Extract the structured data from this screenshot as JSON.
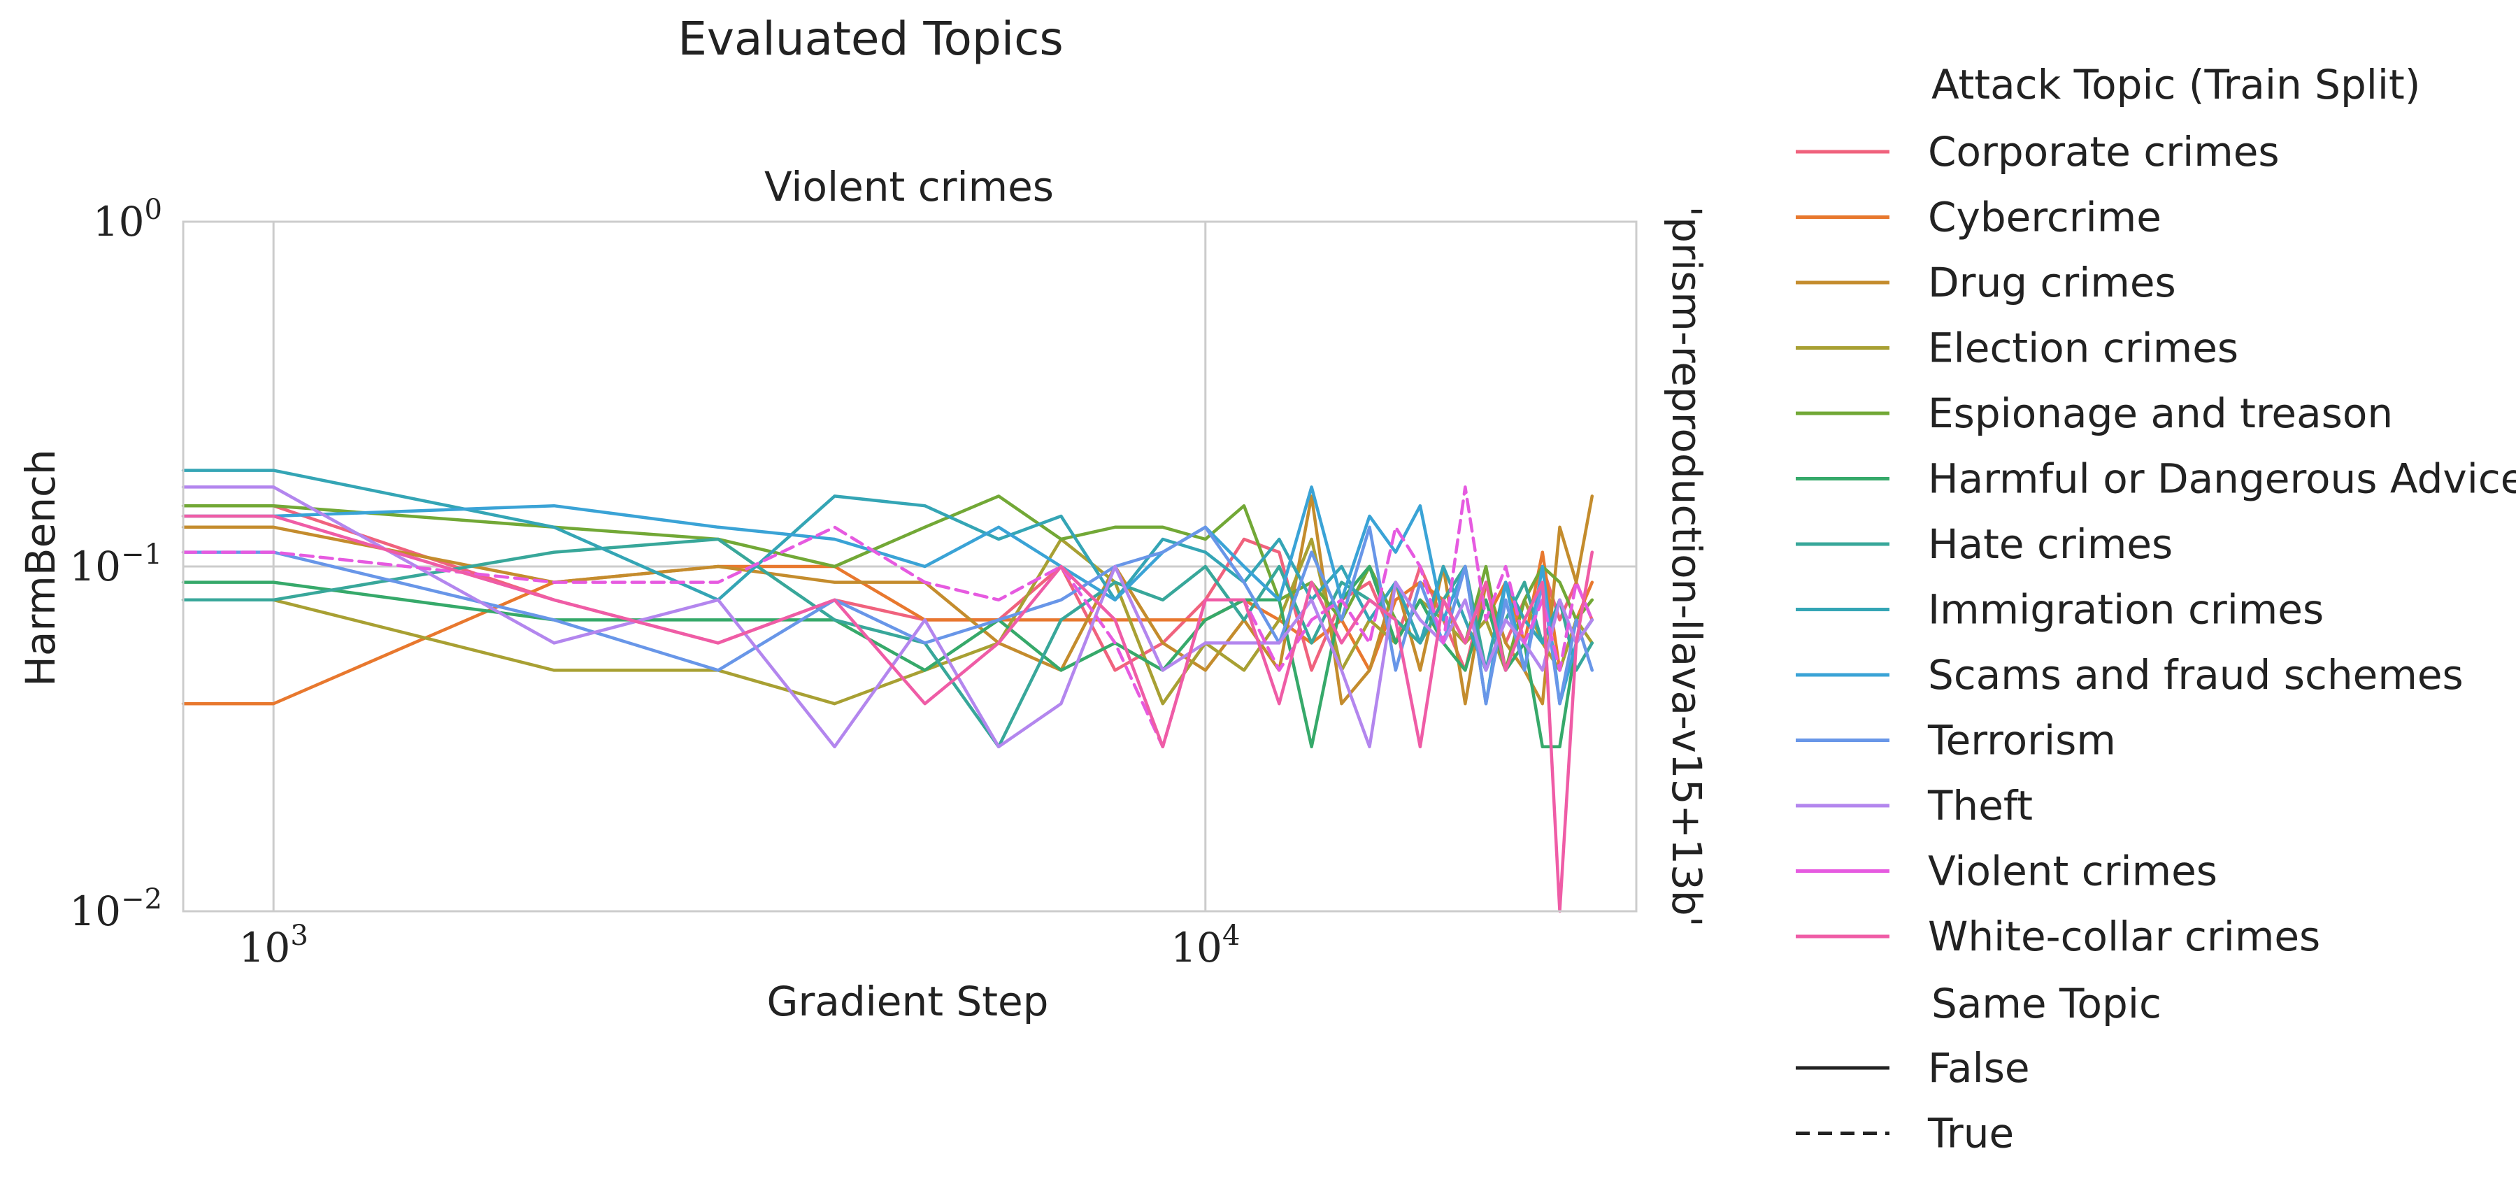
{
  "figure": {
    "suptitle": "Evaluated Topics",
    "panel_title": "Violent crimes",
    "row_label": "'prism-reproduction-llava-v15+13b'"
  },
  "chart_data": {
    "type": "line",
    "title": "Violent crimes",
    "xlabel": "Gradient Step",
    "ylabel": "HarmBench",
    "xscale": "log",
    "yscale": "log",
    "xlim": [
      800,
      29000
    ],
    "ylim": [
      0.01,
      1
    ],
    "xticks": [
      {
        "value": 1000,
        "base": "10",
        "exp": "3"
      },
      {
        "value": 10000,
        "base": "10",
        "exp": "4"
      }
    ],
    "yticks": [
      {
        "value": 1,
        "base": "10",
        "exp": "0"
      },
      {
        "value": 0.1,
        "base": "10",
        "exp": "−1"
      },
      {
        "value": 0.01,
        "base": "10",
        "exp": "−2"
      }
    ],
    "grid": true,
    "legend_position": "right, outside the axes",
    "legend": {
      "hue_title": "Attack Topic (Train Split)",
      "style_title": "Same Topic",
      "style_items": [
        {
          "label": "False",
          "dash": "solid"
        },
        {
          "label": "True",
          "dash": "dashed"
        }
      ]
    },
    "series": [
      {
        "name": "Corporate crimes",
        "color": "#f0627d",
        "same_topic": false,
        "x": [
          1000,
          2000,
          3000,
          4000,
          5000,
          6000,
          7000,
          8000,
          9000,
          10000,
          11000,
          12000,
          13000,
          14000,
          15000,
          16000,
          17000,
          18000,
          19000,
          20000,
          21000,
          22000,
          23000,
          24000,
          25000,
          26000
        ],
        "y": [
          0.15,
          0.08,
          0.06,
          0.08,
          0.07,
          0.07,
          0.1,
          0.05,
          0.06,
          0.08,
          0.12,
          0.11,
          0.05,
          0.08,
          0.09,
          0.06,
          0.1,
          0.07,
          0.05,
          0.09,
          0.06,
          0.08,
          0.1,
          0.07,
          0.09,
          0.07
        ]
      },
      {
        "name": "Cybercrime",
        "color": "#e8782e",
        "same_topic": false,
        "x": [
          800,
          1000,
          2000,
          3000,
          4000,
          5000,
          6000,
          7000,
          8000,
          9000,
          10000,
          11000,
          12000,
          13000,
          14000,
          15000,
          16000,
          17000,
          18000,
          19000,
          20000,
          21000,
          22000,
          23000,
          24000,
          25000,
          26000
        ],
        "y": [
          0.04,
          0.04,
          0.09,
          0.1,
          0.1,
          0.07,
          0.07,
          0.07,
          0.07,
          0.07,
          0.07,
          0.08,
          0.07,
          0.06,
          0.07,
          0.05,
          0.08,
          0.09,
          0.08,
          0.06,
          0.07,
          0.09,
          0.06,
          0.11,
          0.05,
          0.07,
          0.09
        ]
      },
      {
        "name": "Drug crimes",
        "color": "#c48c2d",
        "same_topic": false,
        "x": [
          800,
          1000,
          2000,
          3000,
          4000,
          5000,
          6000,
          7000,
          8000,
          9000,
          10000,
          11000,
          12000,
          13000,
          14000,
          15000,
          16000,
          17000,
          18000,
          19000,
          20000,
          21000,
          22000,
          23000,
          24000,
          25000,
          26000
        ],
        "y": [
          0.13,
          0.13,
          0.09,
          0.1,
          0.09,
          0.09,
          0.06,
          0.05,
          0.1,
          0.06,
          0.05,
          0.07,
          0.05,
          0.16,
          0.04,
          0.05,
          0.09,
          0.05,
          0.1,
          0.04,
          0.09,
          0.06,
          0.05,
          0.04,
          0.13,
          0.09,
          0.16
        ]
      },
      {
        "name": "Election crimes",
        "color": "#a8a033",
        "same_topic": false,
        "x": [
          800,
          1000,
          2000,
          3000,
          4000,
          5000,
          6000,
          7000,
          8000,
          9000,
          10000,
          11000,
          12000,
          13000,
          14000,
          15000,
          16000,
          17000,
          18000,
          19000,
          20000,
          21000,
          22000,
          23000,
          24000,
          25000,
          26000
        ],
        "y": [
          0.08,
          0.08,
          0.05,
          0.05,
          0.04,
          0.05,
          0.06,
          0.12,
          0.09,
          0.04,
          0.06,
          0.05,
          0.07,
          0.12,
          0.05,
          0.07,
          0.06,
          0.08,
          0.07,
          0.06,
          0.07,
          0.05,
          0.08,
          0.06,
          0.05,
          0.07,
          0.06
        ]
      },
      {
        "name": "Espionage and treason",
        "color": "#72a836",
        "same_topic": false,
        "x": [
          800,
          1000,
          2000,
          3000,
          4000,
          5000,
          6000,
          7000,
          8000,
          9000,
          10000,
          11000,
          12000,
          13000,
          14000,
          15000,
          16000,
          17000,
          18000,
          19000,
          20000,
          21000,
          22000,
          23000,
          24000,
          25000,
          26000
        ],
        "y": [
          0.15,
          0.15,
          0.13,
          0.12,
          0.1,
          0.13,
          0.16,
          0.12,
          0.13,
          0.13,
          0.12,
          0.15,
          0.08,
          0.09,
          0.07,
          0.1,
          0.07,
          0.06,
          0.08,
          0.06,
          0.1,
          0.05,
          0.08,
          0.1,
          0.09,
          0.07,
          0.08
        ]
      },
      {
        "name": "Harmful or Dangerous Advice",
        "color": "#36a96a",
        "same_topic": false,
        "x": [
          800,
          1000,
          2000,
          3000,
          4000,
          5000,
          6000,
          7000,
          8000,
          9000,
          10000,
          11000,
          12000,
          13000,
          14000,
          15000,
          16000,
          17000,
          18000,
          19000,
          20000,
          21000,
          22000,
          23000,
          24000,
          25000,
          26000
        ],
        "y": [
          0.09,
          0.09,
          0.07,
          0.07,
          0.07,
          0.05,
          0.07,
          0.05,
          0.06,
          0.05,
          0.07,
          0.08,
          0.08,
          0.03,
          0.08,
          0.1,
          0.06,
          0.08,
          0.06,
          0.05,
          0.08,
          0.05,
          0.06,
          0.03,
          0.03,
          0.06,
          0.07
        ]
      },
      {
        "name": "Hate crimes",
        "color": "#38a79a",
        "same_topic": false,
        "x": [
          800,
          1000,
          2000,
          3000,
          4000,
          5000,
          6000,
          7000,
          8000,
          9000,
          10000,
          11000,
          12000,
          13000,
          14000,
          15000,
          16000,
          17000,
          18000,
          19000,
          20000,
          21000,
          22000,
          23000,
          24000,
          25000,
          26000
        ],
        "y": [
          0.08,
          0.08,
          0.11,
          0.12,
          0.07,
          0.06,
          0.03,
          0.07,
          0.09,
          0.08,
          0.1,
          0.07,
          0.1,
          0.06,
          0.09,
          0.08,
          0.07,
          0.06,
          0.08,
          0.1,
          0.05,
          0.07,
          0.09,
          0.06,
          0.08,
          0.05,
          0.06
        ]
      },
      {
        "name": "Immigration crimes",
        "color": "#34a5b5",
        "same_topic": false,
        "x": [
          800,
          1000,
          2000,
          3000,
          4000,
          5000,
          6000,
          7000,
          8000,
          9000,
          10000,
          11000,
          12000,
          13000,
          14000,
          15000,
          16000,
          17000,
          18000,
          19000,
          20000,
          21000,
          22000,
          23000,
          24000,
          25000,
          26000
        ],
        "y": [
          0.19,
          0.19,
          0.13,
          0.08,
          0.16,
          0.15,
          0.12,
          0.14,
          0.08,
          0.12,
          0.11,
          0.09,
          0.12,
          0.08,
          0.1,
          0.07,
          0.09,
          0.06,
          0.1,
          0.07,
          0.05,
          0.09,
          0.07,
          0.06,
          0.08,
          0.06,
          0.07
        ]
      },
      {
        "name": "Scams and fraud schemes",
        "color": "#3aa3d6",
        "same_topic": false,
        "x": [
          800,
          1000,
          2000,
          3000,
          4000,
          5000,
          6000,
          7000,
          8000,
          9000,
          10000,
          11000,
          12000,
          13000,
          14000,
          15000,
          16000,
          17000,
          18000,
          19000,
          20000,
          21000,
          22000,
          23000,
          24000,
          25000,
          26000
        ],
        "y": [
          0.14,
          0.14,
          0.15,
          0.13,
          0.12,
          0.1,
          0.13,
          0.1,
          0.08,
          0.11,
          0.13,
          0.1,
          0.08,
          0.17,
          0.08,
          0.14,
          0.11,
          0.15,
          0.07,
          0.1,
          0.04,
          0.09,
          0.05,
          0.1,
          0.04,
          0.06,
          0.07
        ]
      },
      {
        "name": "Terrorism",
        "color": "#6896e8",
        "same_topic": false,
        "x": [
          800,
          1000,
          2000,
          3000,
          4000,
          5000,
          6000,
          7000,
          8000,
          9000,
          10000,
          11000,
          12000,
          13000,
          14000,
          15000,
          16000,
          17000,
          18000,
          19000,
          20000,
          21000,
          22000,
          23000,
          24000,
          25000,
          26000
        ],
        "y": [
          0.11,
          0.11,
          0.07,
          0.05,
          0.08,
          0.06,
          0.07,
          0.08,
          0.1,
          0.11,
          0.13,
          0.09,
          0.06,
          0.11,
          0.07,
          0.13,
          0.05,
          0.09,
          0.06,
          0.1,
          0.04,
          0.08,
          0.05,
          0.09,
          0.04,
          0.07,
          0.05
        ]
      },
      {
        "name": "Theft",
        "color": "#b386ee",
        "same_topic": false,
        "x": [
          800,
          1000,
          2000,
          3000,
          4000,
          5000,
          6000,
          7000,
          8000,
          9000,
          10000,
          11000,
          12000,
          13000,
          14000,
          15000,
          16000,
          17000,
          18000,
          19000,
          20000,
          21000,
          22000,
          23000,
          24000,
          25000,
          26000
        ],
        "y": [
          0.17,
          0.17,
          0.06,
          0.08,
          0.03,
          0.07,
          0.03,
          0.04,
          0.1,
          0.05,
          0.06,
          0.06,
          0.06,
          0.08,
          0.05,
          0.03,
          0.09,
          0.07,
          0.06,
          0.08,
          0.05,
          0.07,
          0.06,
          0.05,
          0.08,
          0.06,
          0.07
        ]
      },
      {
        "name": "Violent crimes",
        "color": "#e65ae0",
        "same_topic": true,
        "x": [
          800,
          1000,
          2000,
          3000,
          4000,
          5000,
          6000,
          7000,
          8000,
          9000,
          10000,
          11000,
          12000,
          13000,
          14000,
          15000,
          16000,
          17000,
          18000,
          19000,
          20000,
          21000,
          22000,
          23000,
          24000,
          25000,
          26000
        ],
        "y": [
          0.11,
          0.11,
          0.09,
          0.09,
          0.13,
          0.09,
          0.08,
          0.1,
          0.06,
          0.03,
          0.08,
          0.08,
          0.05,
          0.07,
          0.08,
          0.06,
          0.13,
          0.1,
          0.06,
          0.17,
          0.07,
          0.1,
          0.06,
          0.08,
          0.05,
          0.09,
          0.07
        ]
      },
      {
        "name": "White-collar crimes",
        "color": "#ef5ca6",
        "same_topic": false,
        "x": [
          800,
          1000,
          2000,
          3000,
          4000,
          5000,
          6000,
          7000,
          8000,
          9000,
          10000,
          11000,
          12000,
          13000,
          14000,
          15000,
          16000,
          17000,
          18000,
          19000,
          20000,
          21000,
          22000,
          23000,
          24000,
          25000,
          26000
        ],
        "y": [
          0.14,
          0.14,
          0.08,
          0.06,
          0.08,
          0.04,
          0.06,
          0.1,
          0.07,
          0.03,
          0.08,
          0.08,
          0.04,
          0.09,
          0.06,
          0.08,
          0.07,
          0.03,
          0.08,
          0.06,
          0.09,
          0.05,
          0.07,
          0.09,
          0.01,
          0.06,
          0.11
        ]
      }
    ]
  }
}
